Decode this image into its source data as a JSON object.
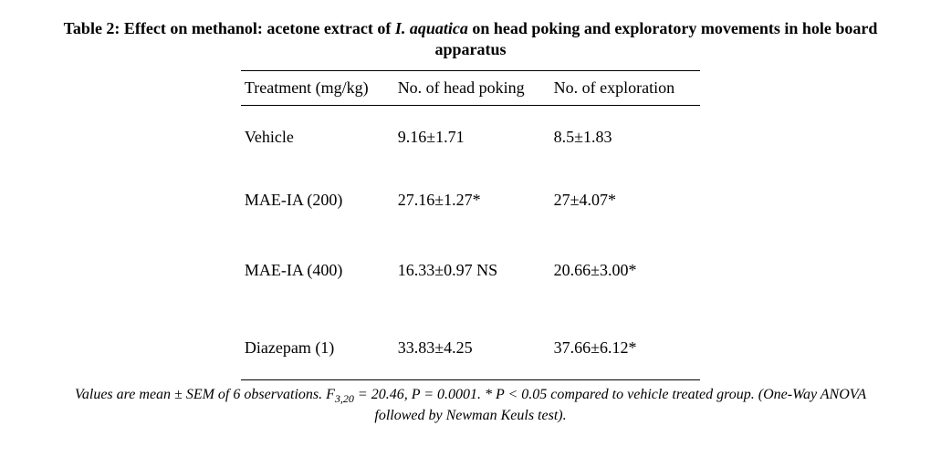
{
  "caption": {
    "prefix": "Table 2: Effect on methanol: acetone extract of ",
    "italic": "I. aquatica",
    "suffix": " on head poking and exploratory movements in hole board apparatus"
  },
  "table": {
    "headers": {
      "col1": "Treatment (mg/kg)",
      "col2": "No. of head poking",
      "col3": "No. of exploration"
    },
    "rows": [
      {
        "c1": "Vehicle",
        "c2": "9.16±1.71",
        "c3": "8.5±1.83"
      },
      {
        "c1": "MAE-IA (200)",
        "c2": "27.16±1.27*",
        "c3": "27±4.07*"
      },
      {
        "c1": "MAE-IA (400)",
        "c2": "16.33±0.97 NS",
        "c3": "20.66±3.00*"
      },
      {
        "c1": "Diazepam (1)",
        "c2": "33.83±4.25",
        "c3": "37.66±6.12*"
      }
    ]
  },
  "footnote": {
    "part1": "Values are mean ± SEM of 6 observations. F",
    "sub": "3,20",
    "part2": " = 20.46, P = 0.0001. * P < 0.05 compared to vehicle treated group. (One-Way ANOVA followed by Newman Keuls test)."
  }
}
